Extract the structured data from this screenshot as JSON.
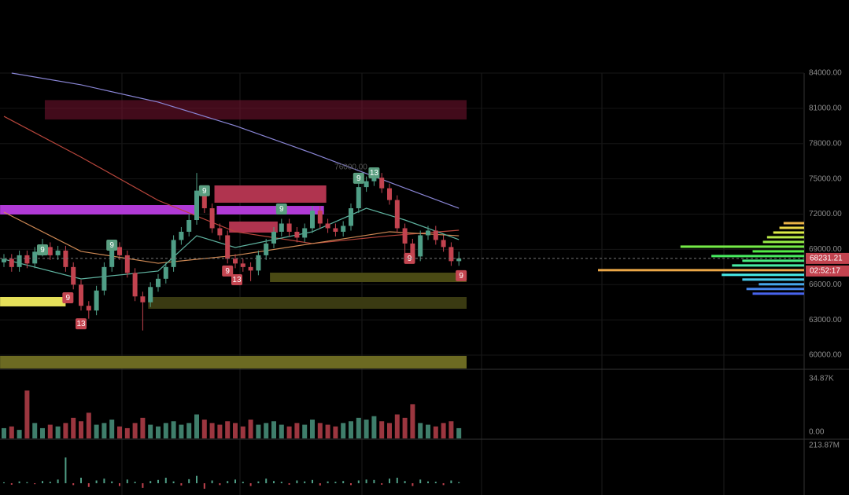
{
  "chart_data": {
    "type": "candlestick",
    "ylim": [
      58800,
      84000
    ],
    "yticks": [
      {
        "value": 84000,
        "label": "84000.00"
      },
      {
        "value": 81000,
        "label": "81000.00"
      },
      {
        "value": 78000,
        "label": "78000.00"
      },
      {
        "value": 75000,
        "label": "75000.00"
      },
      {
        "value": 72000,
        "label": "72000.00"
      },
      {
        "value": 69000,
        "label": "69000.00"
      },
      {
        "value": 66000,
        "label": "66000.00"
      },
      {
        "value": 63000,
        "label": "63000.00"
      },
      {
        "value": 60000,
        "label": "60000.00"
      }
    ],
    "up_color": "#4f9e86",
    "down_color": "#c2434f",
    "open": [
      67900,
      68200,
      67500,
      68500,
      67800,
      68800,
      69200,
      68500,
      68900,
      67500,
      66000,
      64200,
      63800,
      65500,
      67500,
      69200,
      68500,
      67000,
      65000,
      64500,
      65800,
      66500,
      67500,
      69800,
      70500,
      71500,
      74000,
      72500,
      70800,
      70200,
      68200,
      67800,
      67500,
      67200,
      68500,
      69500,
      70500,
      71200,
      70500,
      70000,
      70800,
      72300,
      71200,
      70800,
      70500,
      71000,
      72500,
      74300,
      74800,
      75100,
      74200,
      73200,
      70800,
      69500,
      68400,
      70200,
      70600,
      69800,
      69200,
      68000
    ],
    "close": [
      68200,
      67500,
      68500,
      67800,
      68800,
      69200,
      68500,
      68900,
      67500,
      66000,
      64200,
      63800,
      65500,
      67500,
      69200,
      68500,
      67000,
      65000,
      64500,
      65800,
      66500,
      67500,
      69800,
      70500,
      71500,
      74000,
      72500,
      70800,
      70200,
      68200,
      67800,
      67500,
      67200,
      68500,
      69500,
      70500,
      71200,
      70500,
      70000,
      70800,
      72300,
      71200,
      70800,
      70500,
      71000,
      72500,
      74300,
      74800,
      75100,
      74200,
      73200,
      70800,
      69500,
      68400,
      70200,
      70600,
      69800,
      69200,
      68000,
      68231.21
    ],
    "high": [
      68600,
      68600,
      68900,
      68900,
      69200,
      69900,
      69600,
      69300,
      69300,
      67900,
      66400,
      64600,
      65900,
      67900,
      69600,
      69600,
      68900,
      67400,
      65400,
      66200,
      66900,
      67900,
      70200,
      70900,
      72000,
      75500,
      74400,
      72900,
      71200,
      70600,
      68600,
      68200,
      67900,
      68900,
      69900,
      70900,
      71600,
      71600,
      70900,
      71200,
      72700,
      72700,
      71600,
      71200,
      71400,
      72900,
      74700,
      75200,
      75800,
      75500,
      74600,
      73600,
      71200,
      69900,
      70600,
      71000,
      71000,
      70200,
      69600,
      68800
    ],
    "low": [
      67500,
      67100,
      67100,
      67400,
      67400,
      68400,
      68100,
      68100,
      67100,
      65600,
      63800,
      63100,
      63400,
      65100,
      67100,
      68100,
      66600,
      64600,
      62100,
      64100,
      65400,
      66100,
      67100,
      69400,
      70100,
      71100,
      72100,
      70400,
      69800,
      67800,
      67400,
      67100,
      66300,
      66800,
      68100,
      69100,
      70100,
      70100,
      69600,
      69600,
      70400,
      70800,
      70400,
      70100,
      70100,
      70600,
      72100,
      73900,
      74400,
      73800,
      72800,
      70400,
      68000,
      68000,
      68000,
      69800,
      69400,
      68800,
      67600,
      67600
    ],
    "lines": [
      {
        "color": "#8a86d6",
        "x": [
          1,
          10,
          20,
          30,
          40,
          50,
          59
        ],
        "values": [
          84000,
          83000,
          81530,
          79520,
          77180,
          74710,
          72500
        ]
      },
      {
        "color": "#b8463c",
        "x": [
          0,
          10,
          20,
          30,
          40,
          50,
          59
        ],
        "values": [
          80320,
          76850,
          73170,
          70500,
          69500,
          70160,
          70630
        ]
      },
      {
        "color": "#d08a55",
        "x": [
          0,
          10,
          20,
          30,
          40,
          50,
          59
        ],
        "values": [
          72170,
          68830,
          67820,
          68490,
          69500,
          70500,
          70160
        ]
      },
      {
        "color": "#5fb3a0",
        "x": [
          0,
          10,
          20,
          25,
          30,
          40,
          47,
          52,
          59
        ],
        "values": [
          68160,
          66490,
          67160,
          70160,
          69160,
          70500,
          72500,
          71500,
          69830
        ]
      }
    ],
    "zones": [
      {
        "color": "rgba(120,20,50,0.55)",
        "start": 5.3,
        "end": 60,
        "low": 80050,
        "high": 81700
      },
      {
        "color": "#b03ad6",
        "start": -0.5,
        "end": 25.2,
        "low": 71970,
        "high": 72770
      },
      {
        "color": "#b03ad6",
        "start": 27.6,
        "end": 41.5,
        "low": 71970,
        "high": 72700
      },
      {
        "color": "#b0344f",
        "start": 27.3,
        "end": 41.8,
        "low": 72970,
        "high": 74440
      },
      {
        "color": "#b0344f",
        "start": 29.2,
        "end": 35.5,
        "low": 70430,
        "high": 71370
      },
      {
        "color": "#4a4a14",
        "start": 34.5,
        "end": 60,
        "low": 66220,
        "high": 67020
      },
      {
        "color": "#e5e05a",
        "start": -0.5,
        "end": 8,
        "low": 64150,
        "high": 64950
      },
      {
        "color": "#3a3a12",
        "start": 18.7,
        "end": 60,
        "low": 63950,
        "high": 64950
      },
      {
        "color": "#6c6a22",
        "start": -0.5,
        "end": 60,
        "low": 58870,
        "high": 59940
      }
    ],
    "markers": [
      {
        "label": "9",
        "color": "#5a9e80",
        "index": 5,
        "price": 68960
      },
      {
        "label": "9",
        "color": "#5a9e80",
        "index": 14,
        "price": 69360
      },
      {
        "label": "9",
        "color": "#5a9e80",
        "index": 26,
        "price": 73990
      },
      {
        "label": "9",
        "color": "#5a9e80",
        "index": 36,
        "price": 72440
      },
      {
        "label": "9",
        "color": "#5a9e80",
        "index": 46,
        "price": 75050
      },
      {
        "label": "13",
        "color": "#5a9e80",
        "index": 48,
        "price": 75510
      },
      {
        "label": "9",
        "color": "#c44651",
        "index": 8.3,
        "price": 64880
      },
      {
        "label": "13",
        "color": "#c44651",
        "index": 10,
        "price": 62670
      },
      {
        "label": "9",
        "color": "#c44651",
        "index": 29,
        "price": 67160
      },
      {
        "label": "13",
        "color": "#c44651",
        "index": 30.2,
        "price": 66420
      },
      {
        "label": "9",
        "color": "#c44651",
        "index": 52.6,
        "price": 68230
      },
      {
        "label": "9",
        "color": "#c44651",
        "index": 59.3,
        "price": 66760
      }
    ],
    "annotation": {
      "text": "76000.00",
      "index": 45,
      "price": 76000
    },
    "current_price": {
      "value": 68231.21,
      "label": "68231.21",
      "countdown": "02:52:17"
    },
    "volume_profile": {
      "prices": [
        65200,
        65600,
        66000,
        66400,
        66800,
        67200,
        67600,
        68000,
        68400,
        68800,
        69200,
        69600,
        70000,
        70400,
        70800,
        71200
      ],
      "sizes": [
        25,
        28,
        22,
        30,
        40,
        100,
        35,
        30,
        45,
        25,
        60,
        20,
        18,
        15,
        12,
        10
      ]
    },
    "volume": {
      "ylim": [
        0,
        34870
      ],
      "yticks": [
        {
          "value": 34870,
          "label": "34.87K"
        },
        {
          "value": 0,
          "label": "0.00"
        }
      ],
      "values": [
        6000,
        7000,
        5000,
        28000,
        9000,
        6000,
        8000,
        7000,
        9000,
        12000,
        10000,
        15000,
        8000,
        9000,
        11000,
        7000,
        6000,
        9000,
        12000,
        8000,
        7000,
        9000,
        10000,
        8000,
        9000,
        14000,
        11000,
        9000,
        8000,
        10000,
        9000,
        7000,
        11000,
        8000,
        9000,
        10000,
        8000,
        7000,
        9000,
        8000,
        11000,
        9000,
        8000,
        7000,
        9000,
        10000,
        12000,
        11000,
        13000,
        10000,
        9000,
        14000,
        12000,
        20000,
        9000,
        8000,
        7000,
        9000,
        10000,
        6000
      ]
    },
    "oscillator": {
      "ylim": [
        -64000000,
        213870000
      ],
      "yticks": [
        {
          "value": 213870000,
          "label": "213.87M"
        }
      ],
      "values": [
        5000000,
        -8000000,
        10000000,
        6000000,
        -5000000,
        12000000,
        8000000,
        20000000,
        140000000,
        -10000000,
        30000000,
        -20000000,
        15000000,
        25000000,
        10000000,
        -15000000,
        20000000,
        8000000,
        -25000000,
        12000000,
        18000000,
        30000000,
        10000000,
        -12000000,
        22000000,
        40000000,
        -30000000,
        15000000,
        -10000000,
        12000000,
        20000000,
        8000000,
        -15000000,
        10000000,
        25000000,
        12000000,
        8000000,
        -8000000,
        15000000,
        10000000,
        18000000,
        -12000000,
        10000000,
        8000000,
        12000000,
        -10000000,
        15000000,
        20000000,
        18000000,
        -8000000,
        25000000,
        30000000,
        12000000,
        -15000000,
        20000000,
        10000000,
        8000000,
        -10000000,
        15000000,
        6000000
      ]
    }
  }
}
